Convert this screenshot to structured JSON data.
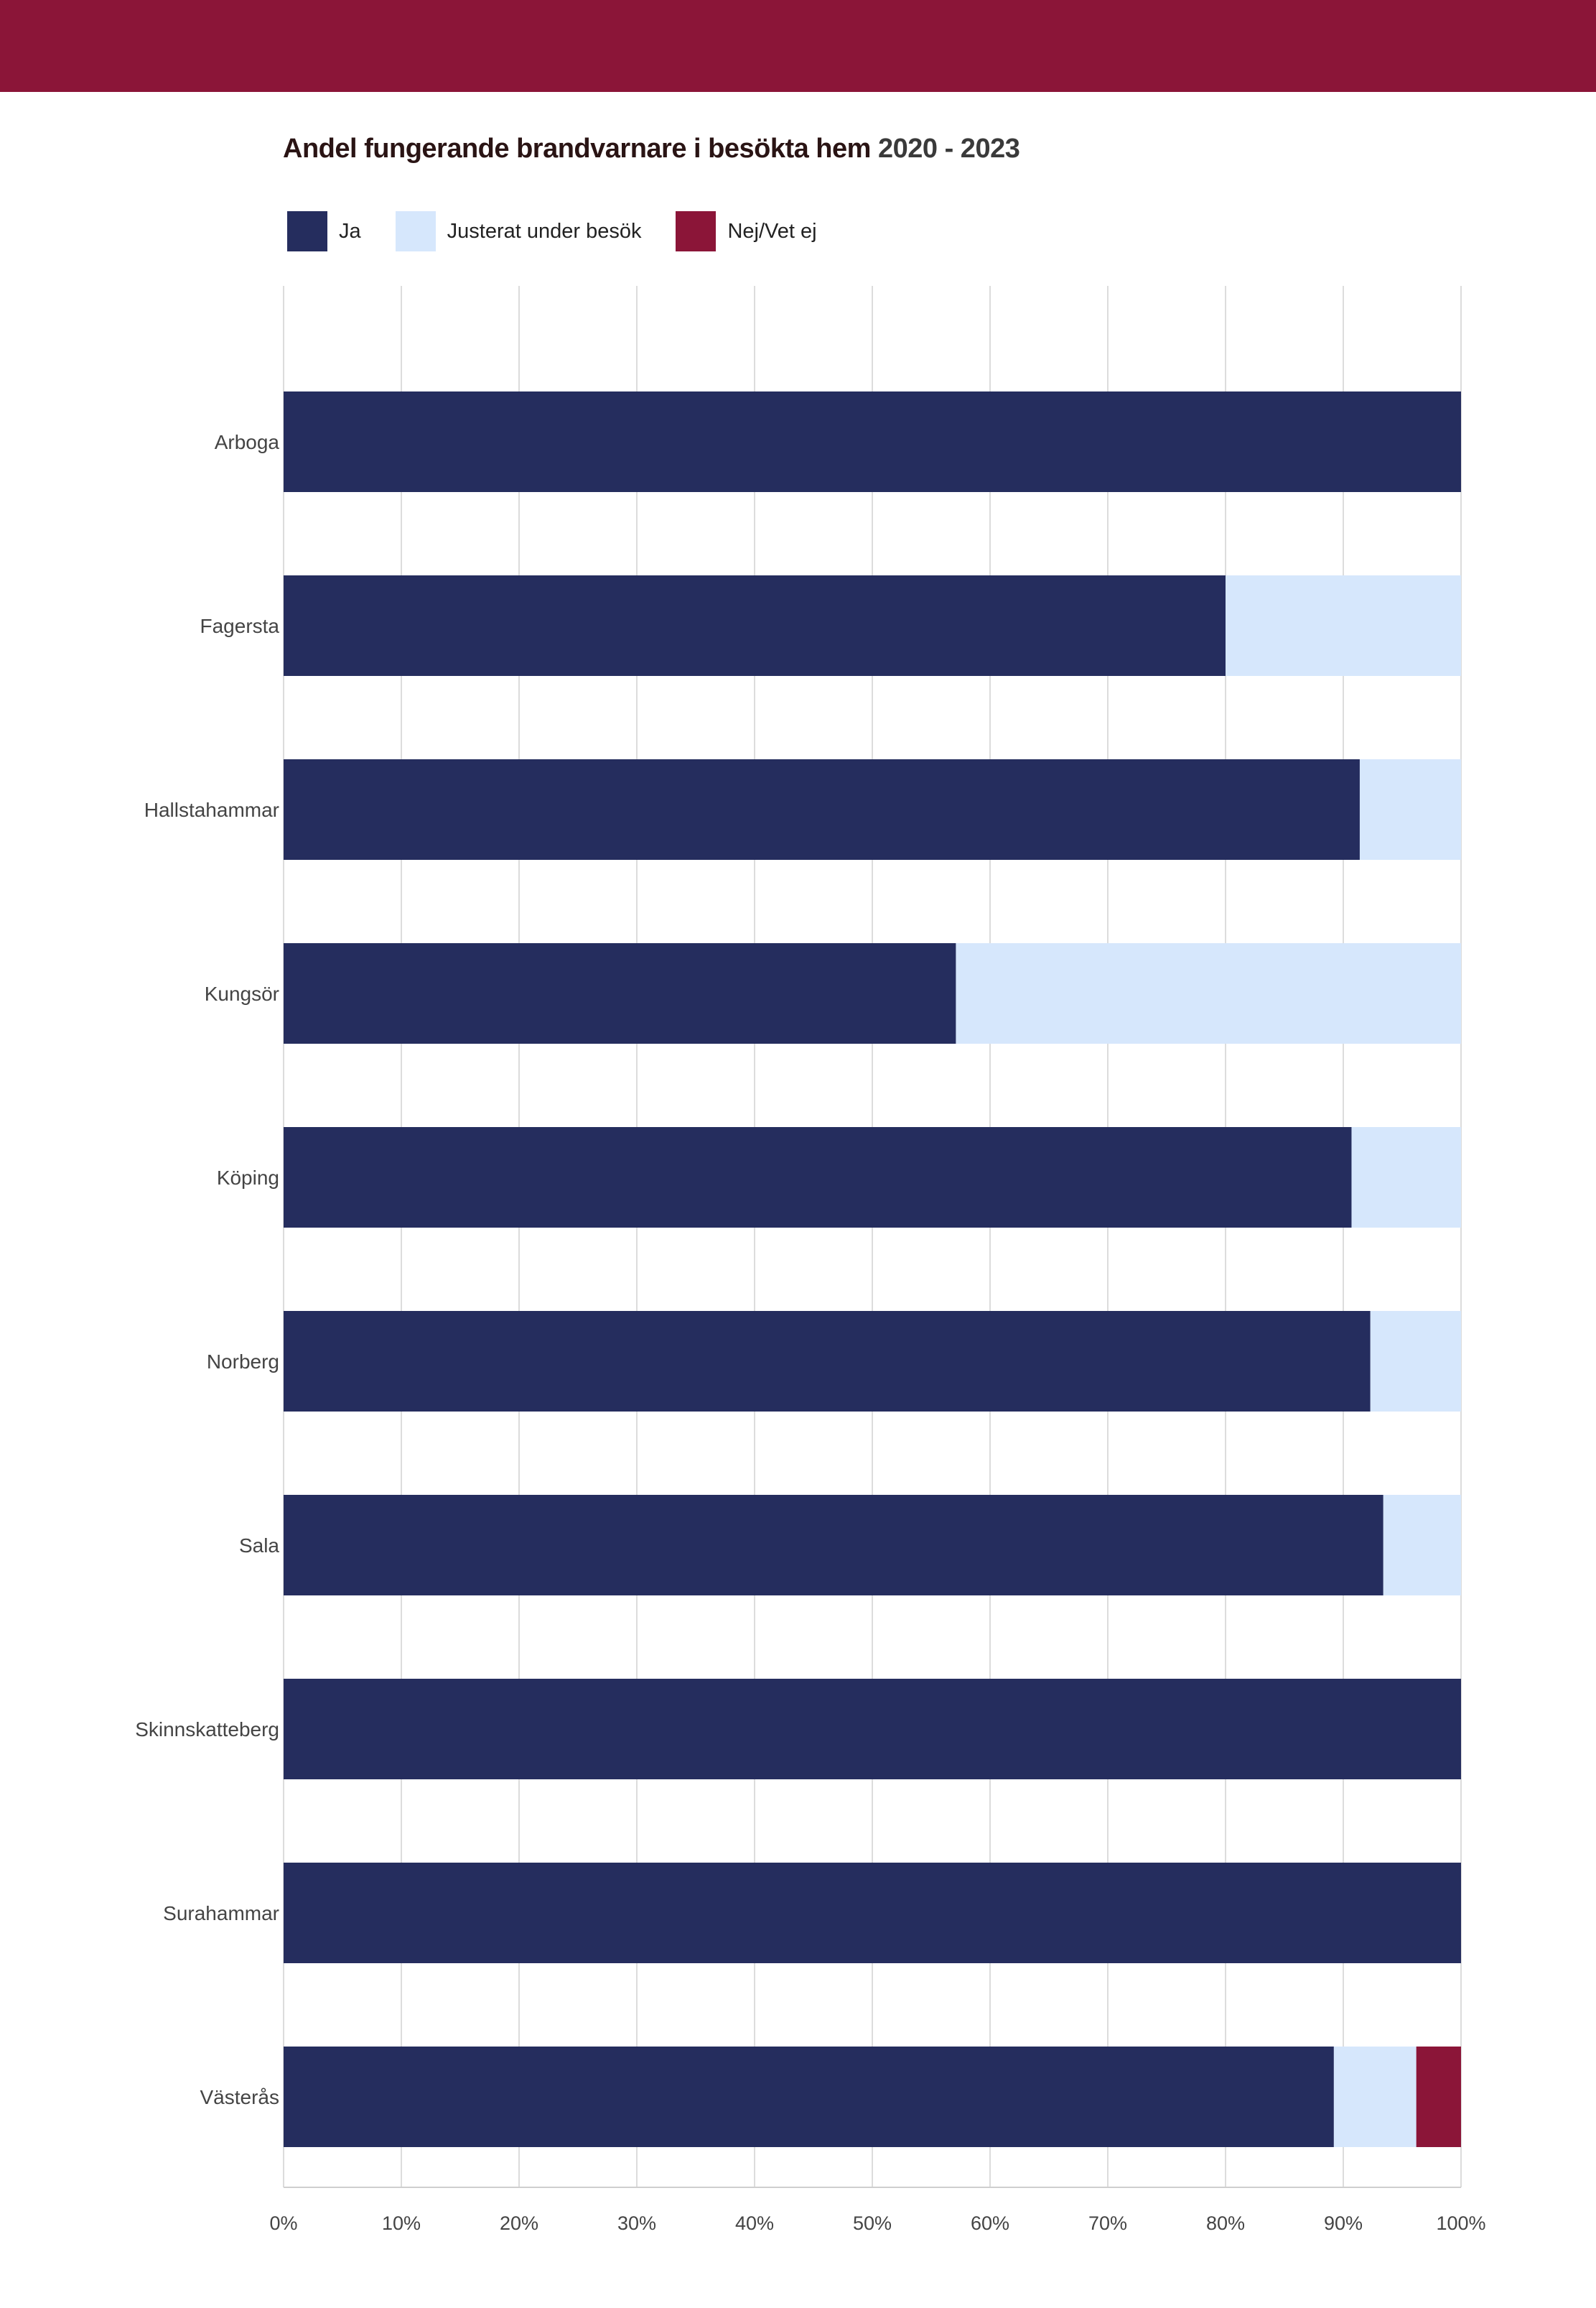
{
  "header": {
    "banner_color": "#8b1538"
  },
  "chart_data": {
    "type": "bar",
    "orientation": "horizontal",
    "stacked": true,
    "title": "Andel fungerande brandvarnare i besökta hem",
    "title_years": "2020 - 2023",
    "categories": [
      "Arboga",
      "Fagersta",
      "Hallstahammar",
      "Kungsör",
      "Köping",
      "Norberg",
      "Sala",
      "Skinnskatteberg",
      "Surahammar",
      "Västerås"
    ],
    "series": [
      {
        "name": "Ja",
        "color": "#252d5e",
        "values": [
          100,
          80,
          91.4,
          57.1,
          90.7,
          92.3,
          93.4,
          100,
          100,
          89.2
        ]
      },
      {
        "name": "Justerat under besök",
        "color": "#d6e7fc",
        "values": [
          0,
          20,
          8.6,
          42.9,
          9.3,
          7.7,
          6.6,
          0,
          0,
          7.0
        ]
      },
      {
        "name": "Nej/Vet ej",
        "color": "#8b1538",
        "values": [
          0,
          0,
          0,
          0,
          0,
          0,
          0,
          0,
          0,
          3.8
        ]
      }
    ],
    "xlim": [
      0,
      100
    ],
    "xticks": [
      "0%",
      "10%",
      "20%",
      "30%",
      "40%",
      "50%",
      "60%",
      "70%",
      "80%",
      "90%",
      "100%"
    ],
    "grid": true,
    "legend_position": "top-left"
  }
}
